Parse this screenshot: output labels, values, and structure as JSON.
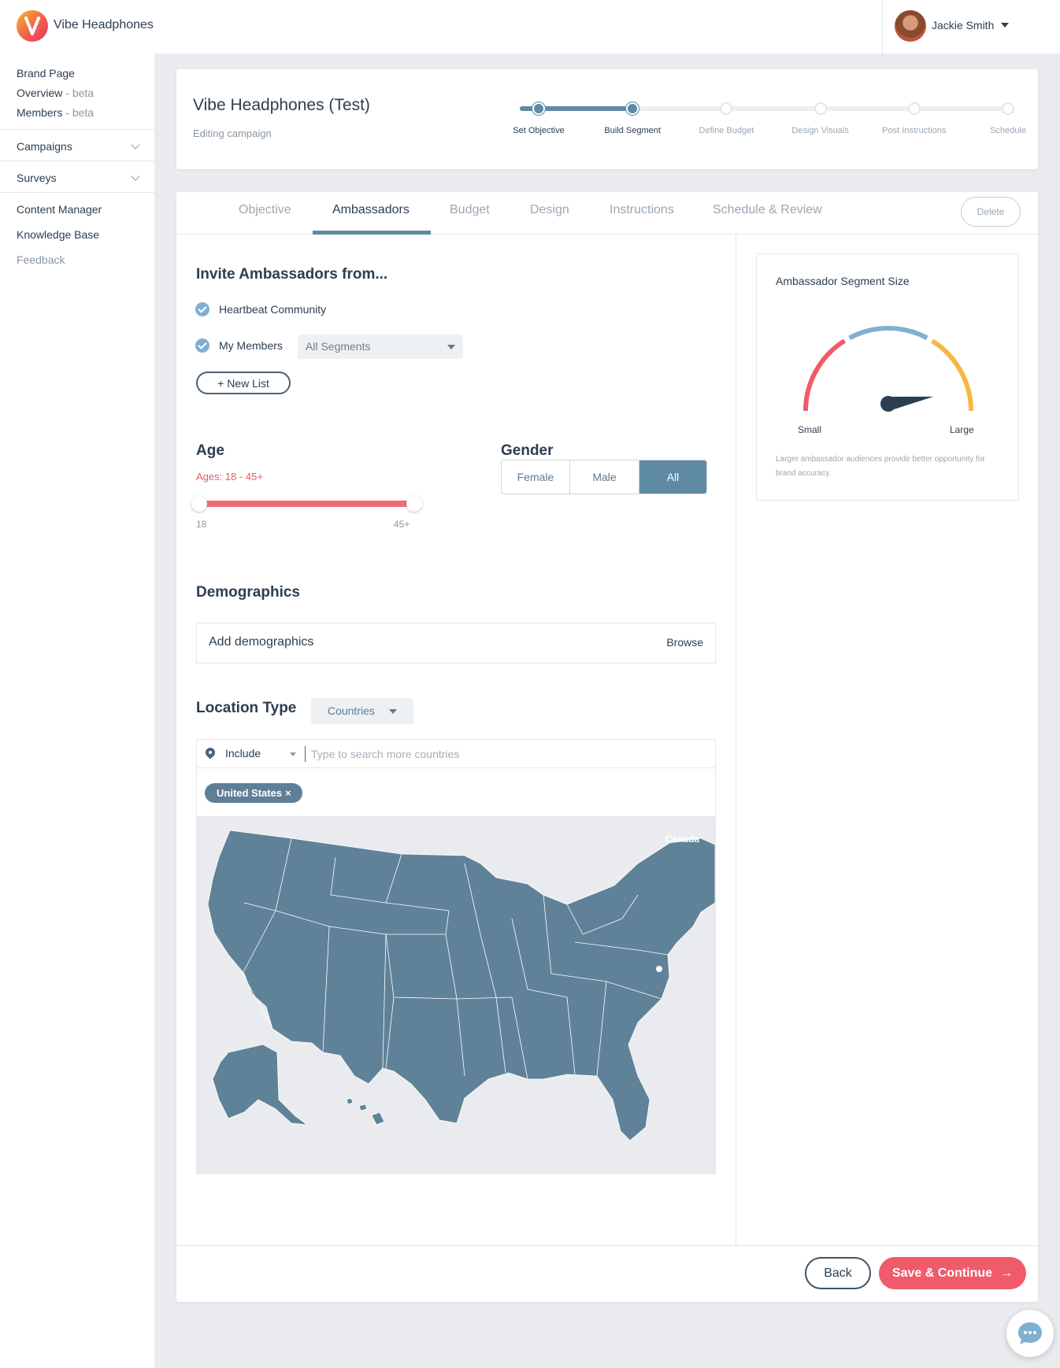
{
  "brand": {
    "name": "Vibe Headphones"
  },
  "user": {
    "name": "Jackie Smith"
  },
  "sidebar": {
    "brand_page": "Brand Page",
    "overview": "Overview",
    "members": "Members",
    "beta": "beta",
    "beta_sep": " - ",
    "campaigns": "Campaigns",
    "surveys": "Surveys",
    "content_manager": "Content Manager",
    "knowledge_base": "Knowledge Base",
    "feedback": "Feedback"
  },
  "header": {
    "title": "Vibe Headphones (Test)",
    "subtitle": "Editing campaign",
    "steps": [
      {
        "label": "Set Objective",
        "status": "done"
      },
      {
        "label": "Build Segment",
        "status": "current"
      },
      {
        "label": "Define Budget",
        "status": "todo"
      },
      {
        "label": "Design Visuals",
        "status": "todo"
      },
      {
        "label": "Post Instructions",
        "status": "todo"
      },
      {
        "label": "Schedule",
        "status": "todo"
      }
    ]
  },
  "tabs": {
    "objective": "Objective",
    "ambassadors": "Ambassadors",
    "budget": "Budget",
    "design": "Design",
    "instructions": "Instructions",
    "schedule_review": "Schedule & Review",
    "active": "Ambassadors",
    "delete": "Delete"
  },
  "invite": {
    "title": "Invite Ambassadors from...",
    "heartbeat": "Heartbeat Community",
    "my_members": "My Members",
    "segment_select": "All Segments",
    "new_list": "+ New List"
  },
  "age": {
    "title": "Age",
    "range_text": "Ages: 18 - 45+",
    "min_label": "18",
    "max_label": "45+",
    "min": 18,
    "max": 45
  },
  "gender": {
    "title": "Gender",
    "female": "Female",
    "male": "Male",
    "all": "All",
    "selected": "All"
  },
  "demographics": {
    "title": "Demographics",
    "placeholder": "Add demographics",
    "browse": "Browse"
  },
  "location": {
    "title": "Location Type",
    "type_select": "Countries",
    "mode": "Include",
    "search_placeholder": "Type to search more countries",
    "chip": "United States",
    "chip_remove": "×",
    "map_label": "Canada"
  },
  "gauge": {
    "title": "Ambassador Segment Size",
    "small": "Small",
    "large": "Large",
    "note": "Larger ambassador audiences provide better opportunity for brand accuracy.",
    "level": 0.95,
    "colors": {
      "small": "#ef5b6a",
      "medium": "#7fb0d0",
      "large": "#f5b942"
    }
  },
  "footer": {
    "back": "Back",
    "save": "Save & Continue",
    "arrow": "→"
  },
  "colors": {
    "accent": "#5f8aa3",
    "primary_red": "#ef5b6a"
  }
}
